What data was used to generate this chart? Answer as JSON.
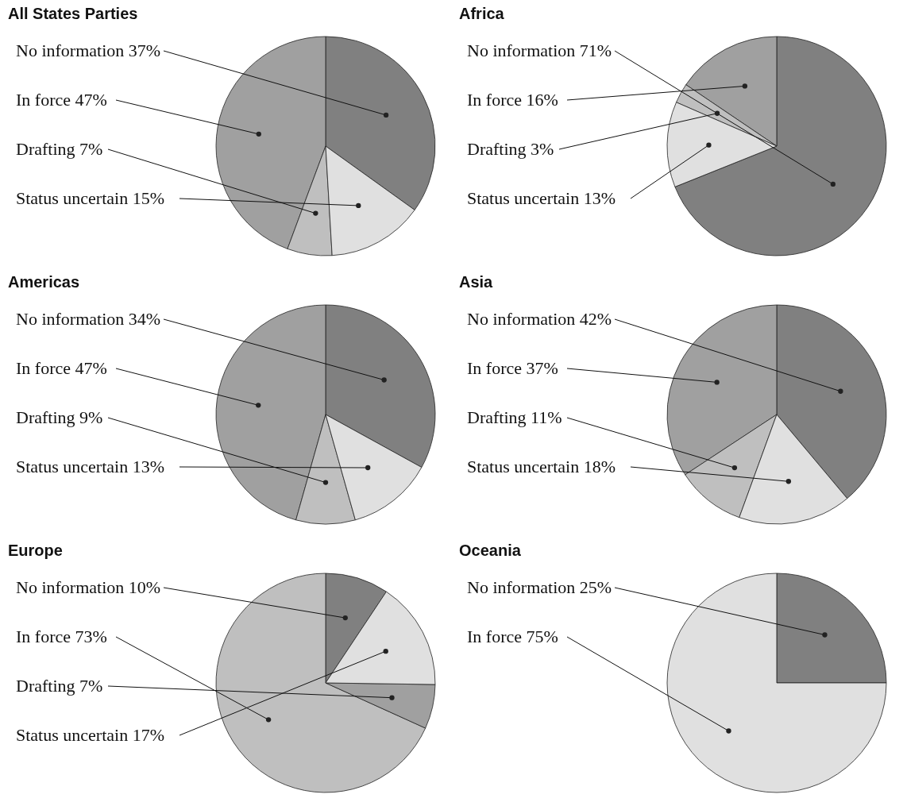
{
  "chart_data": [
    {
      "type": "pie",
      "title": "All States Parties",
      "categories": [
        "No information",
        "In force",
        "Drafting",
        "Status uncertain"
      ],
      "values": [
        37,
        47,
        7,
        15
      ],
      "value_labels": [
        "37%",
        "47%",
        "7%",
        "15%"
      ],
      "colors": [
        "#808080",
        "#a0a0a0",
        "#bfbfbf",
        "#e0e0e0"
      ]
    },
    {
      "type": "pie",
      "title": "Africa",
      "categories": [
        "No information",
        "In force",
        "Drafting",
        "Status uncertain"
      ],
      "values": [
        71,
        16,
        3,
        13
      ],
      "value_labels": [
        "71%",
        "16%",
        "3%",
        "13%"
      ],
      "colors": [
        "#808080",
        "#a0a0a0",
        "#bfbfbf",
        "#e0e0e0"
      ]
    },
    {
      "type": "pie",
      "title": "Americas",
      "categories": [
        "No information",
        "In force",
        "Drafting",
        "Status uncertain"
      ],
      "values": [
        34,
        47,
        9,
        13
      ],
      "value_labels": [
        "34%",
        "47%",
        "9%",
        "13%"
      ],
      "colors": [
        "#808080",
        "#a0a0a0",
        "#bfbfbf",
        "#e0e0e0"
      ]
    },
    {
      "type": "pie",
      "title": "Asia",
      "categories": [
        "No information",
        "In force",
        "Drafting",
        "Status uncertain"
      ],
      "values": [
        42,
        37,
        11,
        18
      ],
      "value_labels": [
        "42%",
        "37%",
        "11%",
        "18%"
      ],
      "colors": [
        "#808080",
        "#a0a0a0",
        "#bfbfbf",
        "#e0e0e0"
      ]
    },
    {
      "type": "pie",
      "title": "Europe",
      "categories": [
        "No information",
        "In force",
        "Drafting",
        "Status uncertain"
      ],
      "values": [
        10,
        73,
        7,
        17
      ],
      "value_labels": [
        "10%",
        "73%",
        "7%",
        "17%"
      ],
      "colors": [
        "#808080",
        "#bfbfbf",
        "#a0a0a0",
        "#e0e0e0"
      ]
    },
    {
      "type": "pie",
      "title": "Oceania",
      "categories": [
        "No information",
        "In force"
      ],
      "values": [
        25,
        75
      ],
      "value_labels": [
        "25%",
        "75%"
      ],
      "colors": [
        "#808080",
        "#e0e0e0"
      ]
    }
  ]
}
